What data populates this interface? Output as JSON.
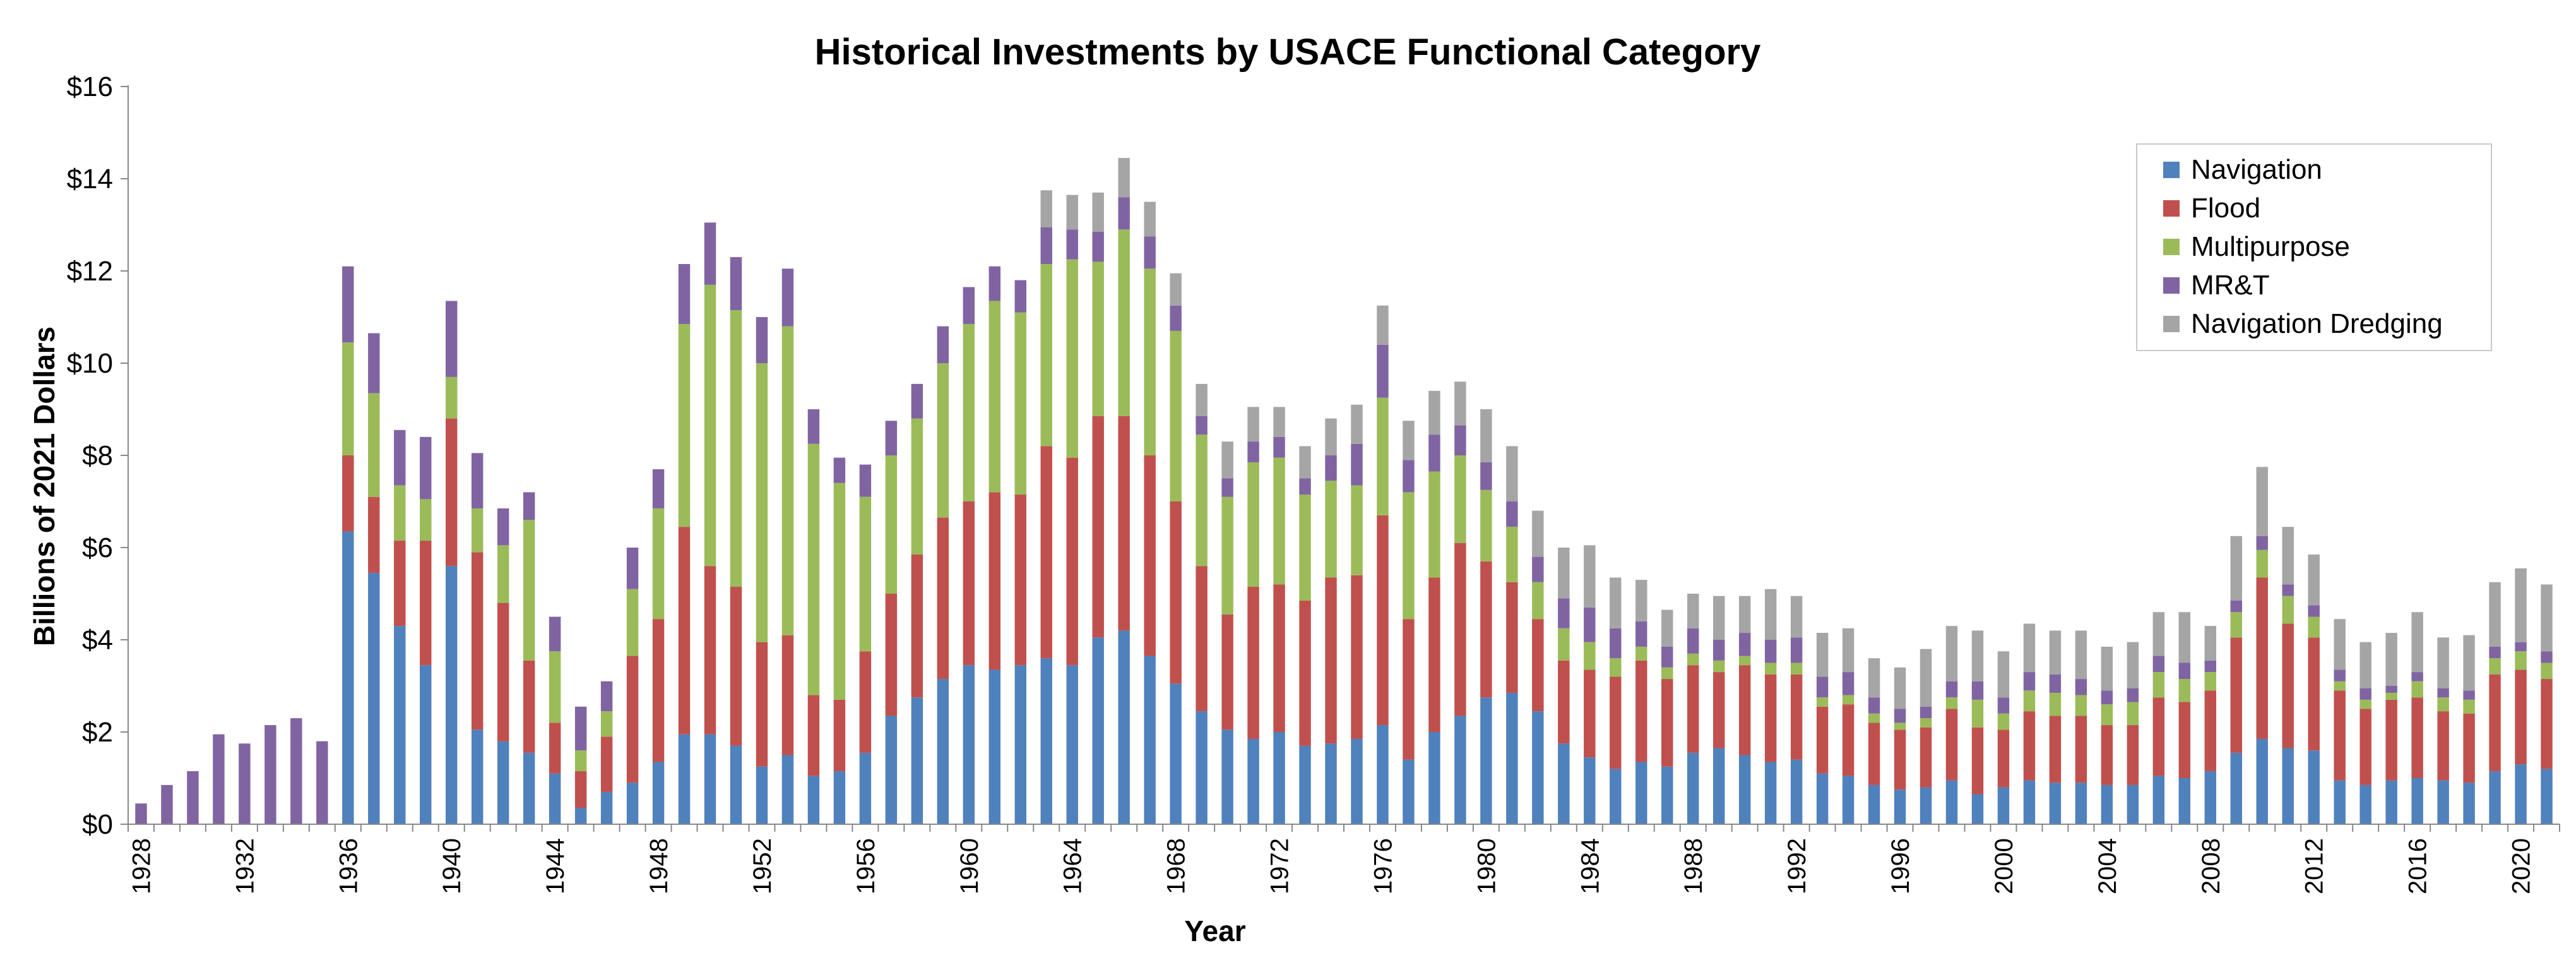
{
  "chart_data": {
    "type": "bar",
    "stacked": true,
    "title": "Historical Investments by USACE Functional Category",
    "xlabel": "Year",
    "ylabel": "Billions of 2021 Dollars",
    "ylim": [
      0,
      16
    ],
    "ytick_labels": [
      "$0",
      "$2",
      "$4",
      "$6",
      "$8",
      "$10",
      "$12",
      "$14",
      "$16"
    ],
    "xtick_labels": [
      "1928",
      "1932",
      "1936",
      "1940",
      "1944",
      "1948",
      "1952",
      "1956",
      "1960",
      "1964",
      "1968",
      "1972",
      "1976",
      "1980",
      "1984",
      "1988",
      "1992",
      "1996",
      "2000",
      "2004",
      "2008",
      "2012",
      "2016",
      "2020"
    ],
    "grid": false,
    "legend_position": "top-right",
    "categories": [
      "1928",
      "1929",
      "1930",
      "1931",
      "1932",
      "1933",
      "1934",
      "1935",
      "1936",
      "1937",
      "1938",
      "1939",
      "1940",
      "1941",
      "1942",
      "1943",
      "1944",
      "1945",
      "1946",
      "1947",
      "1948",
      "1949",
      "1950",
      "1951",
      "1952",
      "1953",
      "1954",
      "1955",
      "1956",
      "1957",
      "1958",
      "1959",
      "1960",
      "1961",
      "1962",
      "1963",
      "1964",
      "1965",
      "1966",
      "1967",
      "1968",
      "1969",
      "1970",
      "1971",
      "1972",
      "1973",
      "1974",
      "1975",
      "1976",
      "1977",
      "1978",
      "1979",
      "1980",
      "1981",
      "1982",
      "1983",
      "1984",
      "1985",
      "1986",
      "1987",
      "1988",
      "1989",
      "1990",
      "1991",
      "1992",
      "1993",
      "1994",
      "1995",
      "1996",
      "1997",
      "1998",
      "1999",
      "2000",
      "2001",
      "2002",
      "2003",
      "2004",
      "2005",
      "2006",
      "2007",
      "2008",
      "2009",
      "2010",
      "2011",
      "2012",
      "2013",
      "2014",
      "2015",
      "2016",
      "2017",
      "2018",
      "2019",
      "2020",
      "2021"
    ],
    "series": [
      {
        "name": "Navigation",
        "color": "#4F81BD",
        "values": [
          0,
          0,
          0,
          0,
          0,
          0,
          0,
          0,
          6.35,
          5.45,
          4.3,
          3.45,
          5.6,
          2.05,
          1.8,
          1.55,
          1.1,
          0.35,
          0.7,
          0.9,
          1.35,
          1.95,
          1.95,
          1.7,
          1.25,
          1.5,
          1.05,
          1.15,
          1.55,
          2.35,
          2.75,
          3.15,
          3.45,
          3.35,
          3.45,
          3.6,
          3.45,
          4.05,
          4.2,
          3.65,
          3.05,
          2.45,
          2.05,
          1.85,
          2.0,
          1.7,
          1.75,
          1.85,
          2.15,
          1.4,
          2.0,
          2.35,
          2.75,
          2.85,
          2.45,
          1.75,
          1.45,
          1.2,
          1.35,
          1.25,
          1.55,
          1.65,
          1.5,
          1.35,
          1.4,
          1.1,
          1.05,
          0.85,
          0.75,
          0.8,
          0.95,
          0.65,
          0.8,
          0.95,
          0.9,
          0.9,
          0.85,
          0.85,
          1.05,
          1.0,
          1.15,
          1.55,
          1.85,
          1.65,
          1.6,
          0.95,
          0.85,
          0.95,
          1.0,
          0.95,
          0.9,
          1.15,
          1.3,
          1.2
        ]
      },
      {
        "name": "Flood",
        "color": "#C0504D",
        "values": [
          0,
          0,
          0,
          0,
          0,
          0,
          0,
          0,
          1.65,
          1.65,
          1.85,
          2.7,
          3.2,
          3.85,
          3.0,
          2.0,
          1.1,
          0.8,
          1.2,
          2.75,
          3.1,
          4.5,
          3.65,
          3.45,
          2.7,
          2.6,
          1.75,
          1.55,
          2.2,
          2.65,
          3.1,
          3.5,
          3.55,
          3.85,
          3.7,
          4.6,
          4.5,
          4.8,
          4.65,
          4.35,
          3.95,
          3.15,
          2.5,
          3.3,
          3.2,
          3.15,
          3.6,
          3.55,
          4.55,
          3.05,
          3.35,
          3.75,
          2.95,
          2.4,
          2.0,
          1.8,
          1.9,
          2.0,
          2.2,
          1.9,
          1.9,
          1.65,
          1.95,
          1.9,
          1.85,
          1.45,
          1.55,
          1.35,
          1.3,
          1.3,
          1.55,
          1.45,
          1.25,
          1.5,
          1.45,
          1.45,
          1.3,
          1.3,
          1.7,
          1.65,
          1.75,
          2.5,
          3.5,
          2.7,
          2.45,
          1.95,
          1.65,
          1.75,
          1.75,
          1.5,
          1.5,
          2.1,
          2.05,
          1.95
        ]
      },
      {
        "name": "Multipurpose",
        "color": "#9BBB59",
        "values": [
          0,
          0,
          0,
          0,
          0,
          0,
          0,
          0,
          2.45,
          2.25,
          1.2,
          0.9,
          0.9,
          0.95,
          1.25,
          3.05,
          1.55,
          0.45,
          0.55,
          1.45,
          2.4,
          4.4,
          6.1,
          6.0,
          6.05,
          6.7,
          5.45,
          4.7,
          3.35,
          3.0,
          2.95,
          3.35,
          3.85,
          4.15,
          3.95,
          3.95,
          4.3,
          3.35,
          4.05,
          4.05,
          3.7,
          2.85,
          2.55,
          2.7,
          2.75,
          2.3,
          2.1,
          1.95,
          2.55,
          2.75,
          2.3,
          1.9,
          1.55,
          1.2,
          0.8,
          0.7,
          0.6,
          0.4,
          0.3,
          0.25,
          0.25,
          0.25,
          0.2,
          0.25,
          0.25,
          0.2,
          0.2,
          0.2,
          0.15,
          0.2,
          0.25,
          0.6,
          0.35,
          0.45,
          0.5,
          0.45,
          0.45,
          0.5,
          0.55,
          0.5,
          0.4,
          0.55,
          0.6,
          0.6,
          0.45,
          0.2,
          0.2,
          0.15,
          0.35,
          0.3,
          0.3,
          0.35,
          0.4,
          0.35
        ]
      },
      {
        "name": "MR&T",
        "color": "#8064A2",
        "values": [
          0.45,
          0.85,
          1.15,
          1.95,
          1.75,
          2.15,
          2.3,
          1.8,
          1.65,
          1.3,
          1.2,
          1.35,
          1.65,
          1.2,
          0.8,
          0.6,
          0.75,
          0.95,
          0.65,
          0.9,
          0.85,
          1.3,
          1.35,
          1.15,
          1.0,
          1.25,
          0.75,
          0.55,
          0.7,
          0.75,
          0.75,
          0.8,
          0.8,
          0.75,
          0.7,
          0.8,
          0.65,
          0.65,
          0.7,
          0.7,
          0.55,
          0.4,
          0.4,
          0.45,
          0.45,
          0.35,
          0.55,
          0.9,
          1.15,
          0.7,
          0.8,
          0.65,
          0.6,
          0.55,
          0.55,
          0.65,
          0.75,
          0.65,
          0.55,
          0.45,
          0.55,
          0.45,
          0.5,
          0.5,
          0.55,
          0.45,
          0.5,
          0.35,
          0.3,
          0.25,
          0.35,
          0.4,
          0.35,
          0.4,
          0.4,
          0.35,
          0.3,
          0.3,
          0.35,
          0.35,
          0.25,
          0.25,
          0.3,
          0.25,
          0.25,
          0.25,
          0.25,
          0.15,
          0.2,
          0.2,
          0.2,
          0.25,
          0.2,
          0.25
        ]
      },
      {
        "name": "Navigation Dredging",
        "color": "#A5A5A5",
        "values": [
          0,
          0,
          0,
          0,
          0,
          0,
          0,
          0,
          0,
          0,
          0,
          0,
          0,
          0,
          0,
          0,
          0,
          0,
          0,
          0,
          0,
          0,
          0,
          0,
          0,
          0,
          0,
          0,
          0,
          0,
          0,
          0,
          0,
          0,
          0,
          0.8,
          0.75,
          0.85,
          0.85,
          0.75,
          0.7,
          0.7,
          0.8,
          0.75,
          0.65,
          0.7,
          0.8,
          0.85,
          0.85,
          0.85,
          0.95,
          0.95,
          1.15,
          1.2,
          1.0,
          1.1,
          1.35,
          1.1,
          0.9,
          0.8,
          0.75,
          0.95,
          0.8,
          1.1,
          0.9,
          0.95,
          0.95,
          0.85,
          0.9,
          1.25,
          1.2,
          1.1,
          1.0,
          1.05,
          0.95,
          1.05,
          0.95,
          1.0,
          0.95,
          1.1,
          0.75,
          1.4,
          1.5,
          1.25,
          1.1,
          1.1,
          1.0,
          1.15,
          1.3,
          1.1,
          1.2,
          1.4,
          1.6,
          1.45
        ]
      }
    ]
  }
}
